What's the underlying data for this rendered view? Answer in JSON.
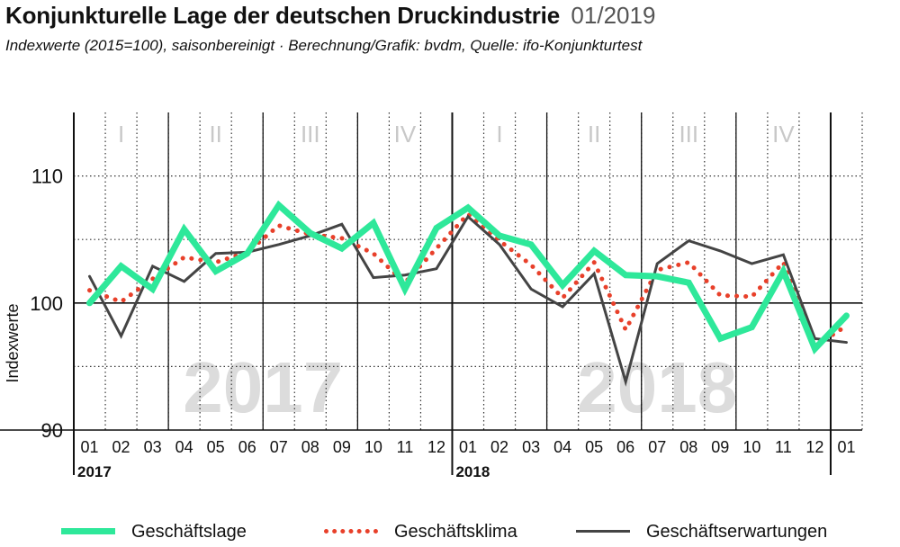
{
  "header": {
    "title": "Konjunkturelle Lage der deutschen Druckindustrie",
    "date": "01/2019",
    "subtitle": "Indexwerte (2015=100), saisonbereinigt · Berechnung/Grafik: bvdm, Quelle: ifo-Konjunkturtest"
  },
  "legend": {
    "items": [
      {
        "label": "Geschäftslage",
        "color": "#2ee89a",
        "style": "solid-thick"
      },
      {
        "label": "Geschäftsklima",
        "color": "#e8402a",
        "style": "dotted"
      },
      {
        "label": "Geschäftserwartungen",
        "color": "#444444",
        "style": "solid"
      }
    ]
  },
  "chart_data": {
    "type": "line",
    "ylabel": "Indexwerte",
    "ylim": [
      90,
      115
    ],
    "yticks": [
      90,
      100,
      110
    ],
    "x": [
      "01",
      "02",
      "03",
      "04",
      "05",
      "06",
      "07",
      "08",
      "09",
      "10",
      "11",
      "12",
      "01",
      "02",
      "03",
      "04",
      "05",
      "06",
      "07",
      "08",
      "09",
      "10",
      "11",
      "12",
      "01"
    ],
    "years": [
      {
        "label": "2017",
        "start_index": 0
      },
      {
        "label": "2018",
        "start_index": 12
      }
    ],
    "watermarks": [
      "2017",
      "2018"
    ],
    "quarters": [
      "I",
      "II",
      "III",
      "IV",
      "I",
      "II",
      "III",
      "IV"
    ],
    "grid": "dotted",
    "series": [
      {
        "name": "Geschäftsklima",
        "color": "#e8402a",
        "style": "dotted",
        "values": [
          101.0,
          100.1,
          101.9,
          103.6,
          103.2,
          104.0,
          106.1,
          105.4,
          105.1,
          103.9,
          101.6,
          104.3,
          107.0,
          104.9,
          103.0,
          100.4,
          103.2,
          97.9,
          102.6,
          103.2,
          100.6,
          100.5,
          103.2,
          96.6,
          98.2
        ]
      },
      {
        "name": "Geschäftserwartungen",
        "color": "#444444",
        "style": "solid",
        "values": [
          102.1,
          97.4,
          102.9,
          101.7,
          103.9,
          104.0,
          104.6,
          105.3,
          106.2,
          102.0,
          102.2,
          102.7,
          106.8,
          104.6,
          101.1,
          99.7,
          102.3,
          93.8,
          103.1,
          104.9,
          104.1,
          103.1,
          103.8,
          97.2,
          96.9
        ]
      },
      {
        "name": "Geschäftslage",
        "color": "#2ee89a",
        "style": "solid-thick",
        "values": [
          100.0,
          102.9,
          101.1,
          105.8,
          102.5,
          103.9,
          107.7,
          105.5,
          104.3,
          106.3,
          101.1,
          105.9,
          107.5,
          105.3,
          104.6,
          101.4,
          104.1,
          102.2,
          102.1,
          101.6,
          97.2,
          98.1,
          102.5,
          96.4,
          99.0
        ]
      }
    ]
  }
}
